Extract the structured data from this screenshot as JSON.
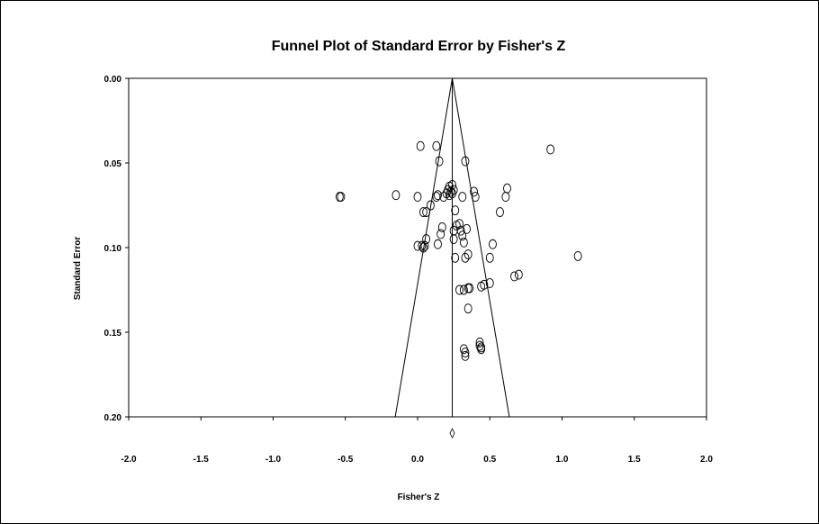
{
  "chart_data": {
    "type": "scatter",
    "title": "Funnel Plot of Standard Error by Fisher's Z",
    "xlabel": "Fisher's Z",
    "ylabel": "Standard Error",
    "xlim": [
      -2.0,
      2.0
    ],
    "ylim": [
      0.0,
      0.2
    ],
    "y_inverted": true,
    "x_ticks": [
      "-2.0",
      "-1.5",
      "-1.0",
      "-0.5",
      "0.0",
      "0.5",
      "1.0",
      "1.5",
      "2.0"
    ],
    "y_ticks": [
      "0.00",
      "0.05",
      "0.10",
      "0.15",
      "0.20"
    ],
    "grid": false,
    "marker": "open-circle",
    "summary_effect": 0.24,
    "funnel": {
      "apex": [
        0.24,
        0.0
      ],
      "left_base": [
        -0.155,
        0.2
      ],
      "right_base": [
        0.635,
        0.2
      ]
    },
    "summary_diamond": {
      "x": 0.24,
      "y": 0.207
    },
    "points": [
      [
        0.02,
        0.04
      ],
      [
        0.13,
        0.04
      ],
      [
        0.92,
        0.042
      ],
      [
        0.15,
        0.049
      ],
      [
        0.33,
        0.049
      ],
      [
        0.24,
        0.063
      ],
      [
        0.22,
        0.064
      ],
      [
        0.62,
        0.065
      ],
      [
        0.21,
        0.066
      ],
      [
        0.25,
        0.066
      ],
      [
        0.23,
        0.067
      ],
      [
        0.39,
        0.067
      ],
      [
        0.2,
        0.068
      ],
      [
        0.24,
        0.068
      ],
      [
        0.22,
        0.069
      ],
      [
        -0.54,
        0.07
      ],
      [
        -0.53,
        0.07
      ],
      [
        -0.15,
        0.069
      ],
      [
        0.0,
        0.07
      ],
      [
        0.13,
        0.07
      ],
      [
        0.14,
        0.069
      ],
      [
        0.18,
        0.07
      ],
      [
        0.31,
        0.07
      ],
      [
        0.4,
        0.07
      ],
      [
        0.61,
        0.07
      ],
      [
        0.09,
        0.075
      ],
      [
        0.26,
        0.078
      ],
      [
        0.04,
        0.079
      ],
      [
        0.06,
        0.079
      ],
      [
        0.57,
        0.079
      ],
      [
        0.29,
        0.086
      ],
      [
        0.27,
        0.087
      ],
      [
        0.17,
        0.088
      ],
      [
        0.34,
        0.089
      ],
      [
        0.25,
        0.09
      ],
      [
        0.3,
        0.09
      ],
      [
        0.16,
        0.092
      ],
      [
        0.31,
        0.093
      ],
      [
        0.06,
        0.095
      ],
      [
        0.25,
        0.095
      ],
      [
        0.32,
        0.097
      ],
      [
        0.0,
        0.099
      ],
      [
        0.03,
        0.099
      ],
      [
        0.05,
        0.099
      ],
      [
        0.14,
        0.098
      ],
      [
        0.52,
        0.098
      ],
      [
        0.04,
        0.1
      ],
      [
        0.35,
        0.104
      ],
      [
        0.26,
        0.106
      ],
      [
        0.33,
        0.106
      ],
      [
        0.5,
        0.106
      ],
      [
        1.11,
        0.105
      ],
      [
        0.7,
        0.116
      ],
      [
        0.67,
        0.117
      ],
      [
        0.5,
        0.121
      ],
      [
        0.46,
        0.122
      ],
      [
        0.44,
        0.123
      ],
      [
        0.29,
        0.125
      ],
      [
        0.32,
        0.125
      ],
      [
        0.35,
        0.124
      ],
      [
        0.36,
        0.124
      ],
      [
        0.35,
        0.136
      ],
      [
        0.43,
        0.156
      ],
      [
        0.43,
        0.158
      ],
      [
        0.44,
        0.159
      ],
      [
        0.44,
        0.16
      ],
      [
        0.32,
        0.16
      ],
      [
        0.33,
        0.162
      ],
      [
        0.33,
        0.164
      ]
    ]
  }
}
